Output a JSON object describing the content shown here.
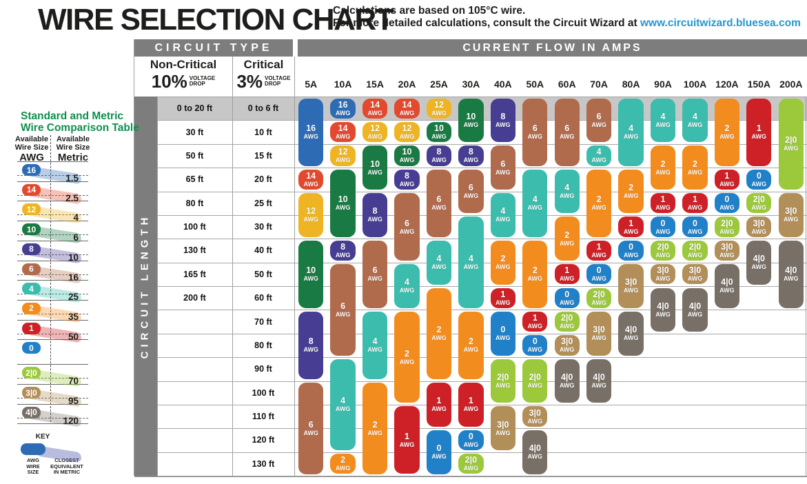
{
  "header": {
    "title": "WIRE SELECTION CHART",
    "note_line1": "Calculations are based on 105°C wire.",
    "note_line2_prefix": "For more detailed calculations, consult the Circuit Wizard at ",
    "note_link": "www.circuitwizard.bluesea.com"
  },
  "colors": {
    "awg": {
      "16": "#2d6cb4",
      "14": "#e2492f",
      "12": "#eeb424",
      "10": "#1a7a43",
      "8": "#473d93",
      "6": "#b06b4c",
      "4": "#3cbcad",
      "2": "#f28c1e",
      "1": "#cd2027",
      "0": "#2080c8",
      "2|0": "#9cc83c",
      "3|0": "#b28e58",
      "4|0": "#786f66"
    },
    "header_bar": "#7d7d7d",
    "row1_band": "#c7c7c7",
    "gridline": "#a6a6a6",
    "sidebar_title_green": "#0e8f4d",
    "link_blue": "#2597d0"
  },
  "sidebar": {
    "title_line1": "Standard and Metric",
    "title_line2": "Wire Comparison Table",
    "left_header_line1": "Available",
    "left_header_line2": "Wire Size",
    "left_unit": "AWG",
    "right_header_line1": "Available",
    "right_header_line2": "Wire Size",
    "right_unit": "Metric",
    "rows": [
      {
        "awg": "16",
        "metric": "1.5"
      },
      {
        "awg": "14",
        "metric": "2.5"
      },
      {
        "awg": "12",
        "metric": "4"
      },
      {
        "awg": "10",
        "metric": "6"
      },
      {
        "awg": "8",
        "metric": "10"
      },
      {
        "awg": "6",
        "metric": "16"
      },
      {
        "awg": "4",
        "metric": "25"
      },
      {
        "awg": "2",
        "metric": "35"
      },
      {
        "awg": "1",
        "metric": "50"
      },
      {
        "awg": "0",
        "metric": ""
      },
      {
        "awg": "2|0",
        "metric": "70"
      },
      {
        "awg": "3|0",
        "metric": "95"
      },
      {
        "awg": "4|0",
        "metric": "120"
      }
    ],
    "key": {
      "title": "KEY",
      "pill_label_lines": [
        "AWG",
        "WIRE",
        "SIZE"
      ],
      "band_label_lines": [
        "CLOSEST",
        "EQUIVALENT",
        "IN METRIC"
      ]
    }
  },
  "table": {
    "circuit_type_header": "CIRCUIT TYPE",
    "current_flow_header": "CURRENT FLOW IN AMPS",
    "non_critical": {
      "name": "Non-Critical",
      "pct": "10%",
      "drop_line1": "VOLTAGE",
      "drop_line2": "DROP"
    },
    "critical": {
      "name": "Critical",
      "pct": "3%",
      "drop_line1": "VOLTAGE",
      "drop_line2": "DROP"
    },
    "circuit_length_label": "CIRCUIT LENGTH",
    "length_rows": [
      {
        "non_critical": "0 to 20 ft",
        "critical": "0 to 6 ft"
      },
      {
        "non_critical": "30 ft",
        "critical": "10 ft"
      },
      {
        "non_critical": "50 ft",
        "critical": "15 ft"
      },
      {
        "non_critical": "65 ft",
        "critical": "20 ft"
      },
      {
        "non_critical": "80 ft",
        "critical": "25 ft"
      },
      {
        "non_critical": "100 ft",
        "critical": "30 ft"
      },
      {
        "non_critical": "130 ft",
        "critical": "40 ft"
      },
      {
        "non_critical": "165 ft",
        "critical": "50 ft"
      },
      {
        "non_critical": "200 ft",
        "critical": "60 ft"
      },
      {
        "non_critical": "",
        "critical": "70 ft"
      },
      {
        "non_critical": "",
        "critical": "80 ft"
      },
      {
        "non_critical": "",
        "critical": "90 ft"
      },
      {
        "non_critical": "",
        "critical": "100 ft"
      },
      {
        "non_critical": "",
        "critical": "110 ft"
      },
      {
        "non_critical": "",
        "critical": "120 ft"
      },
      {
        "non_critical": "",
        "critical": "130 ft"
      }
    ]
  },
  "chart_data": {
    "type": "table",
    "title": "WIRE SELECTION CHART",
    "x_axis": "Current flow in amps",
    "y_axis": "Circuit length (rows pair non-critical 10% drop with critical 3% drop lengths)",
    "wire_unit": "AWG",
    "amp_columns": [
      "5A",
      "10A",
      "15A",
      "20A",
      "25A",
      "30A",
      "40A",
      "50A",
      "60A",
      "70A",
      "80A",
      "90A",
      "100A",
      "120A",
      "150A",
      "200A"
    ],
    "columns": [
      {
        "amps": "5A",
        "segments": [
          {
            "awg": "16",
            "from_row": 1,
            "to_row": 3
          },
          {
            "awg": "14",
            "from_row": 4,
            "to_row": 4
          },
          {
            "awg": "12",
            "from_row": 5,
            "to_row": 6
          },
          {
            "awg": "10",
            "from_row": 7,
            "to_row": 9
          },
          {
            "awg": "8",
            "from_row": 10,
            "to_row": 12
          },
          {
            "awg": "6",
            "from_row": 13,
            "to_row": 16
          }
        ]
      },
      {
        "amps": "10A",
        "segments": [
          {
            "awg": "16",
            "from_row": 1,
            "to_row": 1
          },
          {
            "awg": "14",
            "from_row": 2,
            "to_row": 2
          },
          {
            "awg": "12",
            "from_row": 3,
            "to_row": 3
          },
          {
            "awg": "10",
            "from_row": 4,
            "to_row": 6
          },
          {
            "awg": "8",
            "from_row": 7,
            "to_row": 7
          },
          {
            "awg": "6",
            "from_row": 8,
            "to_row": 11
          },
          {
            "awg": "4",
            "from_row": 12,
            "to_row": 15
          },
          {
            "awg": "2",
            "from_row": 16,
            "to_row": 16
          }
        ]
      },
      {
        "amps": "15A",
        "segments": [
          {
            "awg": "14",
            "from_row": 1,
            "to_row": 1
          },
          {
            "awg": "12",
            "from_row": 2,
            "to_row": 2
          },
          {
            "awg": "10",
            "from_row": 3,
            "to_row": 4
          },
          {
            "awg": "8",
            "from_row": 5,
            "to_row": 6
          },
          {
            "awg": "6",
            "from_row": 7,
            "to_row": 9
          },
          {
            "awg": "4",
            "from_row": 10,
            "to_row": 12
          },
          {
            "awg": "2",
            "from_row": 13,
            "to_row": 16
          }
        ]
      },
      {
        "amps": "20A",
        "segments": [
          {
            "awg": "14",
            "from_row": 1,
            "to_row": 1
          },
          {
            "awg": "12",
            "from_row": 2,
            "to_row": 2
          },
          {
            "awg": "10",
            "from_row": 3,
            "to_row": 3
          },
          {
            "awg": "8",
            "from_row": 4,
            "to_row": 4
          },
          {
            "awg": "6",
            "from_row": 5,
            "to_row": 7
          },
          {
            "awg": "4",
            "from_row": 8,
            "to_row": 9
          },
          {
            "awg": "2",
            "from_row": 10,
            "to_row": 13
          },
          {
            "awg": "1",
            "from_row": 14,
            "to_row": 16
          }
        ]
      },
      {
        "amps": "25A",
        "segments": [
          {
            "awg": "12",
            "from_row": 1,
            "to_row": 1
          },
          {
            "awg": "10",
            "from_row": 2,
            "to_row": 2
          },
          {
            "awg": "8",
            "from_row": 3,
            "to_row": 3
          },
          {
            "awg": "6",
            "from_row": 4,
            "to_row": 6
          },
          {
            "awg": "4",
            "from_row": 7,
            "to_row": 8
          },
          {
            "awg": "2",
            "from_row": 9,
            "to_row": 12
          },
          {
            "awg": "1",
            "from_row": 13,
            "to_row": 14
          },
          {
            "awg": "0",
            "from_row": 15,
            "to_row": 16
          }
        ]
      },
      {
        "amps": "30A",
        "segments": [
          {
            "awg": "10",
            "from_row": 1,
            "to_row": 2
          },
          {
            "awg": "8",
            "from_row": 3,
            "to_row": 3
          },
          {
            "awg": "6",
            "from_row": 4,
            "to_row": 5
          },
          {
            "awg": "4",
            "from_row": 6,
            "to_row": 9
          },
          {
            "awg": "2",
            "from_row": 10,
            "to_row": 12
          },
          {
            "awg": "1",
            "from_row": 13,
            "to_row": 14
          },
          {
            "awg": "0",
            "from_row": 15,
            "to_row": 15
          },
          {
            "awg": "2|0",
            "from_row": 16,
            "to_row": 16
          }
        ]
      },
      {
        "amps": "40A",
        "segments": [
          {
            "awg": "8",
            "from_row": 1,
            "to_row": 2
          },
          {
            "awg": "6",
            "from_row": 3,
            "to_row": 4
          },
          {
            "awg": "4",
            "from_row": 5,
            "to_row": 6
          },
          {
            "awg": "2",
            "from_row": 7,
            "to_row": 8
          },
          {
            "awg": "1",
            "from_row": 9,
            "to_row": 9
          },
          {
            "awg": "0",
            "from_row": 10,
            "to_row": 11
          },
          {
            "awg": "2|0",
            "from_row": 12,
            "to_row": 13
          },
          {
            "awg": "3|0",
            "from_row": 14,
            "to_row": 15
          }
        ]
      },
      {
        "amps": "50A",
        "segments": [
          {
            "awg": "6",
            "from_row": 1,
            "to_row": 3
          },
          {
            "awg": "4",
            "from_row": 4,
            "to_row": 6
          },
          {
            "awg": "2",
            "from_row": 7,
            "to_row": 9
          },
          {
            "awg": "1",
            "from_row": 10,
            "to_row": 10
          },
          {
            "awg": "0",
            "from_row": 11,
            "to_row": 11
          },
          {
            "awg": "2|0",
            "from_row": 12,
            "to_row": 13
          },
          {
            "awg": "3|0",
            "from_row": 14,
            "to_row": 14
          },
          {
            "awg": "4|0",
            "from_row": 15,
            "to_row": 16
          }
        ]
      },
      {
        "amps": "60A",
        "segments": [
          {
            "awg": "6",
            "from_row": 1,
            "to_row": 3
          },
          {
            "awg": "4",
            "from_row": 4,
            "to_row": 5
          },
          {
            "awg": "2",
            "from_row": 6,
            "to_row": 7
          },
          {
            "awg": "1",
            "from_row": 8,
            "to_row": 8
          },
          {
            "awg": "0",
            "from_row": 9,
            "to_row": 9
          },
          {
            "awg": "2|0",
            "from_row": 10,
            "to_row": 10
          },
          {
            "awg": "3|0",
            "from_row": 11,
            "to_row": 11
          },
          {
            "awg": "4|0",
            "from_row": 12,
            "to_row": 13
          }
        ]
      },
      {
        "amps": "70A",
        "segments": [
          {
            "awg": "6",
            "from_row": 1,
            "to_row": 2
          },
          {
            "awg": "4",
            "from_row": 3,
            "to_row": 3
          },
          {
            "awg": "2",
            "from_row": 4,
            "to_row": 6
          },
          {
            "awg": "1",
            "from_row": 7,
            "to_row": 7
          },
          {
            "awg": "0",
            "from_row": 8,
            "to_row": 8
          },
          {
            "awg": "2|0",
            "from_row": 9,
            "to_row": 9
          },
          {
            "awg": "3|0",
            "from_row": 10,
            "to_row": 11
          },
          {
            "awg": "4|0",
            "from_row": 12,
            "to_row": 13
          }
        ]
      },
      {
        "amps": "80A",
        "segments": [
          {
            "awg": "4",
            "from_row": 1,
            "to_row": 3
          },
          {
            "awg": "2",
            "from_row": 4,
            "to_row": 5
          },
          {
            "awg": "1",
            "from_row": 6,
            "to_row": 6
          },
          {
            "awg": "0",
            "from_row": 7,
            "to_row": 7
          },
          {
            "awg": "3|0",
            "from_row": 8,
            "to_row": 9
          },
          {
            "awg": "4|0",
            "from_row": 10,
            "to_row": 11
          }
        ]
      },
      {
        "amps": "90A",
        "segments": [
          {
            "awg": "4",
            "from_row": 1,
            "to_row": 2
          },
          {
            "awg": "2",
            "from_row": 3,
            "to_row": 4
          },
          {
            "awg": "1",
            "from_row": 5,
            "to_row": 5
          },
          {
            "awg": "0",
            "from_row": 6,
            "to_row": 6
          },
          {
            "awg": "2|0",
            "from_row": 7,
            "to_row": 7
          },
          {
            "awg": "3|0",
            "from_row": 8,
            "to_row": 8
          },
          {
            "awg": "4|0",
            "from_row": 9,
            "to_row": 10
          }
        ]
      },
      {
        "amps": "100A",
        "segments": [
          {
            "awg": "4",
            "from_row": 1,
            "to_row": 2
          },
          {
            "awg": "2",
            "from_row": 3,
            "to_row": 4
          },
          {
            "awg": "1",
            "from_row": 5,
            "to_row": 5
          },
          {
            "awg": "0",
            "from_row": 6,
            "to_row": 6
          },
          {
            "awg": "2|0",
            "from_row": 7,
            "to_row": 7
          },
          {
            "awg": "3|0",
            "from_row": 8,
            "to_row": 8
          },
          {
            "awg": "4|0",
            "from_row": 9,
            "to_row": 10
          }
        ]
      },
      {
        "amps": "120A",
        "segments": [
          {
            "awg": "2",
            "from_row": 1,
            "to_row": 3
          },
          {
            "awg": "1",
            "from_row": 4,
            "to_row": 4
          },
          {
            "awg": "0",
            "from_row": 5,
            "to_row": 5
          },
          {
            "awg": "2|0",
            "from_row": 6,
            "to_row": 6
          },
          {
            "awg": "3|0",
            "from_row": 7,
            "to_row": 7
          },
          {
            "awg": "4|0",
            "from_row": 8,
            "to_row": 9
          }
        ]
      },
      {
        "amps": "150A",
        "segments": [
          {
            "awg": "1",
            "from_row": 1,
            "to_row": 3
          },
          {
            "awg": "0",
            "from_row": 4,
            "to_row": 4
          },
          {
            "awg": "2|0",
            "from_row": 5,
            "to_row": 5
          },
          {
            "awg": "3|0",
            "from_row": 6,
            "to_row": 6
          },
          {
            "awg": "4|0",
            "from_row": 7,
            "to_row": 8
          }
        ]
      },
      {
        "amps": "200A",
        "segments": [
          {
            "awg": "2|0",
            "from_row": 1,
            "to_row": 4
          },
          {
            "awg": "3|0",
            "from_row": 5,
            "to_row": 6
          },
          {
            "awg": "4|0",
            "from_row": 7,
            "to_row": 9
          }
        ]
      }
    ]
  }
}
